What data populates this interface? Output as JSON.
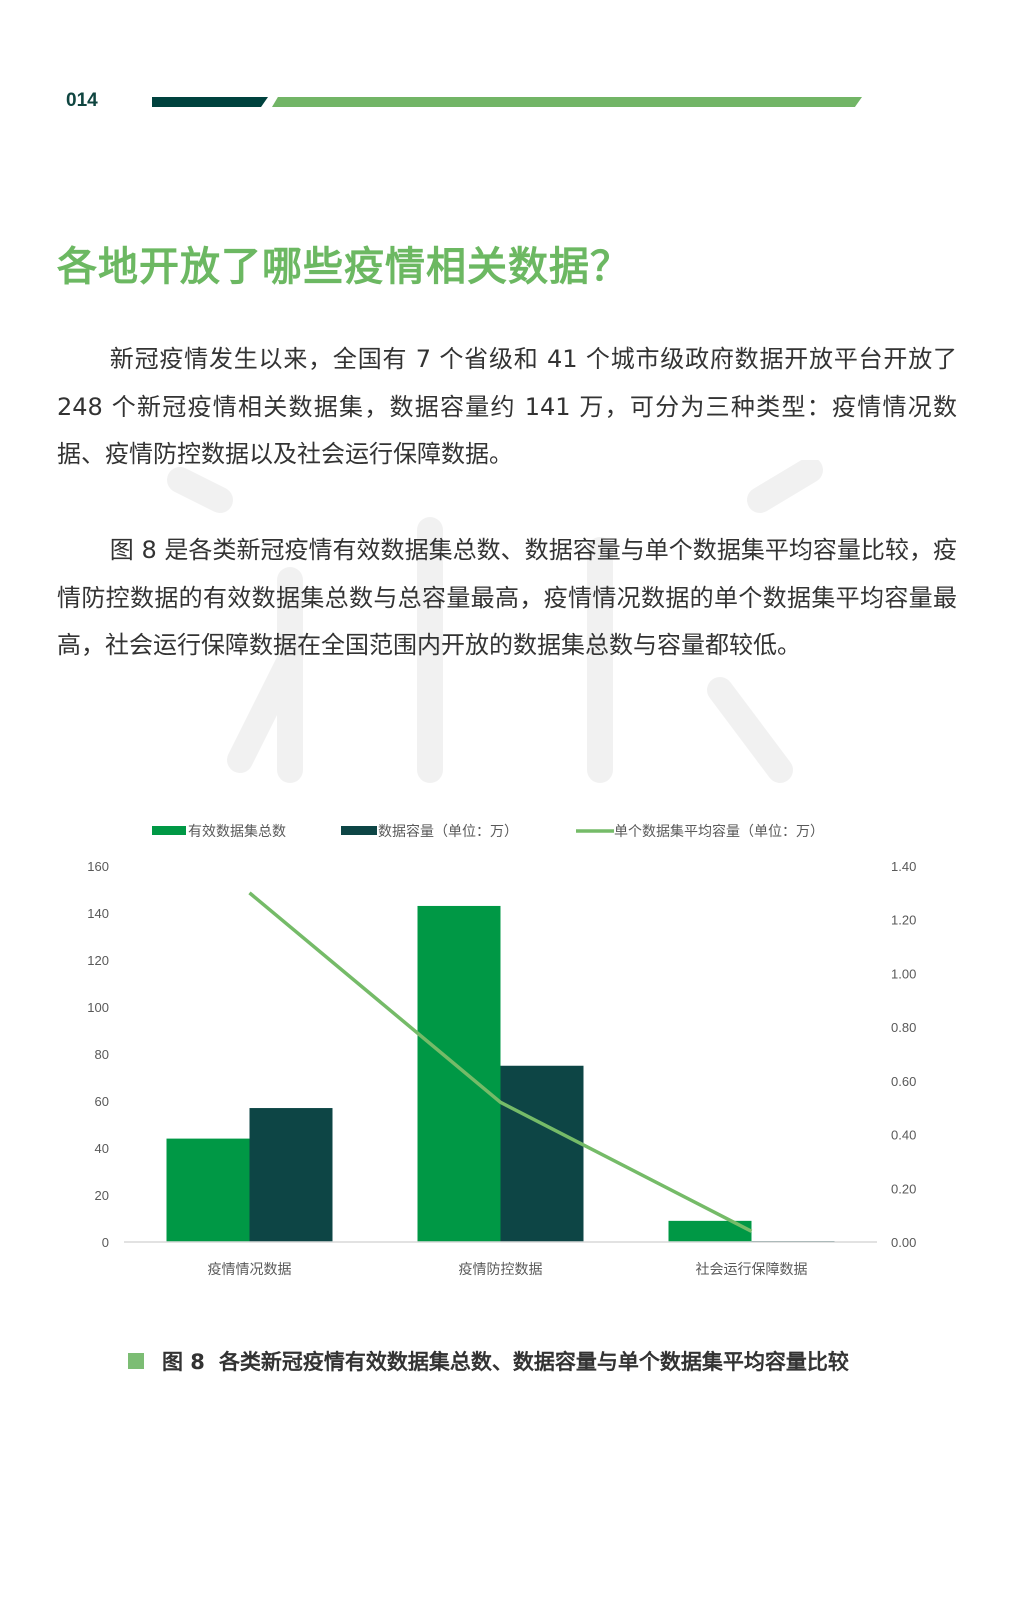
{
  "header": {
    "page_number": "014"
  },
  "title": "各地开放了哪些疫情相关数据？",
  "paragraphs": [
    "新冠疫情发生以来，全国有 7 个省级和 41 个城市级政府数据开放平台开放了 248 个新冠疫情相关数据集，数据容量约 141 万，可分为三种类型：疫情情况数据、疫情防控数据以及社会运行保障数据。",
    "图 8 是各类新冠疫情有效数据集总数、数据容量与单个数据集平均容量比较，疫情防控数据的有效数据集总数与总容量最高，疫情情况数据的单个数据集平均容量最高，社会运行保障数据在全国范围内开放的数据集总数与容量都较低。"
  ],
  "colors": {
    "accent_green": "#6cb862",
    "bar_green": "#009845",
    "bar_dark": "#0d4545",
    "line_green": "#75bb68",
    "header_dark": "#00423e"
  },
  "chart_data": {
    "type": "bar+line",
    "categories": [
      "疫情情况数据",
      "疫情防控数据",
      "社会运行保障数据"
    ],
    "series": [
      {
        "name": "有效数据集总数",
        "type": "bar",
        "axis": "left",
        "values": [
          44,
          143,
          9
        ]
      },
      {
        "name": "数据容量（单位：万）",
        "type": "bar",
        "axis": "left",
        "values": [
          57,
          75,
          0.4
        ]
      },
      {
        "name": "单个数据集平均容量（单位：万）",
        "type": "line",
        "axis": "right",
        "values": [
          1.3,
          0.52,
          0.04
        ]
      }
    ],
    "left_axis": {
      "ylim": [
        0,
        160
      ],
      "ticks": [
        "0",
        "20",
        "40",
        "60",
        "80",
        "100",
        "120",
        "140",
        "160"
      ]
    },
    "right_axis": {
      "ylim": [
        0,
        1.4
      ],
      "ticks": [
        "0.00",
        "0.20",
        "0.40",
        "0.60",
        "0.80",
        "1.00",
        "1.20",
        "1.40"
      ]
    },
    "grid": false,
    "legend": "top"
  },
  "caption": {
    "label": "图 8",
    "text": "各类新冠疫情有效数据集总数、数据容量与单个数据集平均容量比较"
  }
}
